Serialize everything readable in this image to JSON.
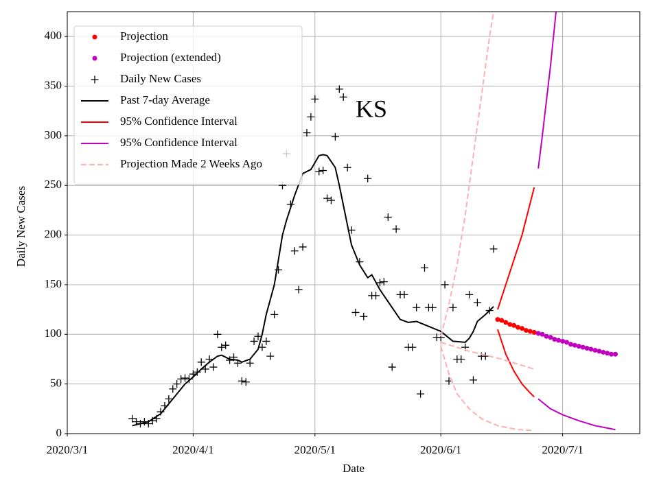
{
  "chart_data": {
    "type": "line",
    "annotation": "KS",
    "xlabel": "Date",
    "ylabel": "Daily New Cases",
    "xlim": [
      "2020/3/1",
      "2020/7/20"
    ],
    "xticks": [
      "2020/3/1",
      "2020/4/1",
      "2020/5/1",
      "2020/6/1",
      "2020/7/1"
    ],
    "ylim": [
      0,
      425
    ],
    "yticks": [
      0,
      50,
      100,
      150,
      200,
      250,
      300,
      350,
      400
    ],
    "grid": true,
    "legend": "upper left",
    "series": [
      {
        "name": "Projection",
        "color": "#ff0000",
        "style": "dot",
        "x": [
          "2020/6/15",
          "2020/6/16",
          "2020/6/17",
          "2020/6/18",
          "2020/6/19",
          "2020/6/20",
          "2020/6/21",
          "2020/6/22",
          "2020/6/23",
          "2020/6/24"
        ],
        "values": [
          115,
          114,
          112,
          110,
          109,
          107,
          106,
          104,
          103,
          102
        ]
      },
      {
        "name": "Projection (extended)",
        "color": "#bf00bf",
        "style": "dot",
        "x": [
          "2020/6/25",
          "2020/6/26",
          "2020/6/27",
          "2020/6/28",
          "2020/6/29",
          "2020/6/30",
          "2020/7/1",
          "2020/7/2",
          "2020/7/3",
          "2020/7/4",
          "2020/7/5",
          "2020/7/6",
          "2020/7/7",
          "2020/7/8",
          "2020/7/9",
          "2020/7/10",
          "2020/7/11",
          "2020/7/12",
          "2020/7/13",
          "2020/7/14"
        ],
        "values": [
          101,
          100,
          98,
          97,
          95,
          94,
          93,
          92,
          90,
          89,
          88,
          87,
          86,
          85,
          84,
          83,
          82,
          81,
          80,
          80
        ]
      },
      {
        "name": "Daily New Cases",
        "color": "#000000",
        "style": "plus",
        "x": [
          "2020/3/17",
          "2020/3/18",
          "2020/3/19",
          "2020/3/20",
          "2020/3/21",
          "2020/3/22",
          "2020/3/23",
          "2020/3/24",
          "2020/3/25",
          "2020/3/26",
          "2020/3/27",
          "2020/3/28",
          "2020/3/29",
          "2020/3/30",
          "2020/3/31",
          "2020/4/1",
          "2020/4/2",
          "2020/4/3",
          "2020/4/4",
          "2020/4/5",
          "2020/4/6",
          "2020/4/7",
          "2020/4/8",
          "2020/4/9",
          "2020/4/10",
          "2020/4/11",
          "2020/4/12",
          "2020/4/13",
          "2020/4/14",
          "2020/4/15",
          "2020/4/16",
          "2020/4/17",
          "2020/4/18",
          "2020/4/19",
          "2020/4/20",
          "2020/4/21",
          "2020/4/22",
          "2020/4/23",
          "2020/4/24",
          "2020/4/25",
          "2020/4/26",
          "2020/4/27",
          "2020/4/28",
          "2020/4/29",
          "2020/4/30",
          "2020/5/1",
          "2020/5/2",
          "2020/5/3",
          "2020/5/4",
          "2020/5/5",
          "2020/5/6",
          "2020/5/7",
          "2020/5/8",
          "2020/5/9",
          "2020/5/10",
          "2020/5/11",
          "2020/5/12",
          "2020/5/13",
          "2020/5/14",
          "2020/5/15",
          "2020/5/16",
          "2020/5/17",
          "2020/5/18",
          "2020/5/19",
          "2020/5/20",
          "2020/5/21",
          "2020/5/22",
          "2020/5/23",
          "2020/5/24",
          "2020/5/25",
          "2020/5/26",
          "2020/5/27",
          "2020/5/28",
          "2020/5/29",
          "2020/5/30",
          "2020/5/31",
          "2020/6/1",
          "2020/6/2",
          "2020/6/3",
          "2020/6/4",
          "2020/6/5",
          "2020/6/6",
          "2020/6/7",
          "2020/6/8",
          "2020/6/9",
          "2020/6/10",
          "2020/6/11",
          "2020/6/12",
          "2020/6/13",
          "2020/6/14"
        ],
        "values": [
          15,
          12,
          10,
          12,
          10,
          13,
          15,
          22,
          28,
          35,
          45,
          50,
          55,
          56,
          55,
          60,
          62,
          72,
          65,
          75,
          67,
          100,
          87,
          89,
          74,
          77,
          71,
          53,
          52,
          71,
          93,
          98,
          87,
          93,
          78,
          120,
          165,
          250,
          282,
          231,
          184,
          145,
          188,
          303,
          319,
          337,
          264,
          265,
          237,
          235,
          299,
          347,
          339,
          268,
          205,
          122,
          173,
          118,
          257,
          139,
          139,
          152,
          153,
          218,
          67,
          206,
          140,
          140,
          87,
          87,
          127,
          40,
          167,
          127,
          127,
          97,
          97,
          150,
          53,
          127,
          75,
          75,
          87,
          140,
          54,
          132,
          78,
          78,
          124,
          186
        ]
      },
      {
        "name": "Past 7-day Average",
        "color": "#000000",
        "style": "line",
        "lines": [
          {
            "x": [
              "2020/3/17",
              "2020/3/19",
              "2020/3/21",
              "2020/3/24",
              "2020/3/27",
              "2020/3/30",
              "2020/4/1",
              "2020/4/3",
              "2020/4/5",
              "2020/4/7",
              "2020/4/8",
              "2020/4/10",
              "2020/4/12",
              "2020/4/13",
              "2020/4/15",
              "2020/4/17",
              "2020/4/18",
              "2020/4/19",
              "2020/4/21",
              "2020/4/23",
              "2020/4/24",
              "2020/4/26",
              "2020/4/28",
              "2020/4/30",
              "2020/5/2",
              "2020/5/3",
              "2020/5/4",
              "2020/5/6",
              "2020/5/7",
              "2020/5/9",
              "2020/5/10",
              "2020/5/12",
              "2020/5/14",
              "2020/5/15",
              "2020/5/17",
              "2020/5/19",
              "2020/5/22",
              "2020/5/24",
              "2020/5/26",
              "2020/5/29",
              "2020/6/1",
              "2020/6/4",
              "2020/6/7",
              "2020/6/8",
              "2020/6/9",
              "2020/6/10",
              "2020/6/12",
              "2020/6/14"
            ],
            "values": [
              8,
              10,
              12,
              20,
              35,
              50,
              57,
              65,
              72,
              78,
              79,
              75,
              74,
              72,
              75,
              85,
              100,
              120,
              150,
              200,
              215,
              240,
              262,
              266,
              280,
              281,
              280,
              268,
              250,
              210,
              190,
              170,
              157,
              160,
              145,
              133,
              115,
              112,
              113,
              108,
              103,
              93,
              92,
              96,
              103,
              113,
              120,
              128
            ]
          }
        ]
      },
      {
        "name": "95% Confidence Interval",
        "color": "#ff0000",
        "style": "line",
        "lines": [
          {
            "x": [
              "2020/6/15",
              "2020/6/17",
              "2020/6/19",
              "2020/6/21",
              "2020/6/23",
              "2020/6/24"
            ],
            "values": [
              125,
              150,
              175,
              200,
              232,
              248
            ]
          },
          {
            "x": [
              "2020/6/15",
              "2020/6/17",
              "2020/6/19",
              "2020/6/21",
              "2020/6/23",
              "2020/6/24"
            ],
            "values": [
              105,
              80,
              63,
              50,
              41,
              37
            ]
          }
        ]
      },
      {
        "name": "95% Confidence Interval",
        "color": "#bf00bf",
        "style": "line",
        "lines": [
          {
            "x": [
              "2020/6/25",
              "2020/6/26",
              "2020/6/27",
              "2020/6/28",
              "2020/6/29",
              "2020/6/30"
            ],
            "values": [
              267,
              300,
              335,
              370,
              410,
              450
            ]
          },
          {
            "x": [
              "2020/6/25",
              "2020/6/28",
              "2020/7/1",
              "2020/7/5",
              "2020/7/9",
              "2020/7/14"
            ],
            "values": [
              35,
              25,
              19,
              13,
              8,
              4
            ]
          }
        ]
      },
      {
        "name": "Projection Made 2 Weeks Ago",
        "color": "#ffb0b0",
        "style": "dashed",
        "lines": [
          {
            "x": [
              "2020/6/1",
              "2020/6/3",
              "2020/6/5",
              "2020/6/7",
              "2020/6/9",
              "2020/6/11",
              "2020/6/13",
              "2020/6/15"
            ],
            "values": [
              98,
              130,
              170,
              220,
              280,
              340,
              400,
              450
            ]
          },
          {
            "x": [
              "2020/6/1",
              "2020/6/8",
              "2020/6/16",
              "2020/6/24"
            ],
            "values": [
              92,
              83,
              75,
              65
            ]
          },
          {
            "x": [
              "2020/6/1",
              "2020/6/3",
              "2020/6/5",
              "2020/6/8",
              "2020/6/11",
              "2020/6/15",
              "2020/6/20",
              "2020/6/24"
            ],
            "values": [
              88,
              60,
              40,
              25,
              15,
              8,
              4,
              3
            ]
          }
        ]
      }
    ]
  }
}
